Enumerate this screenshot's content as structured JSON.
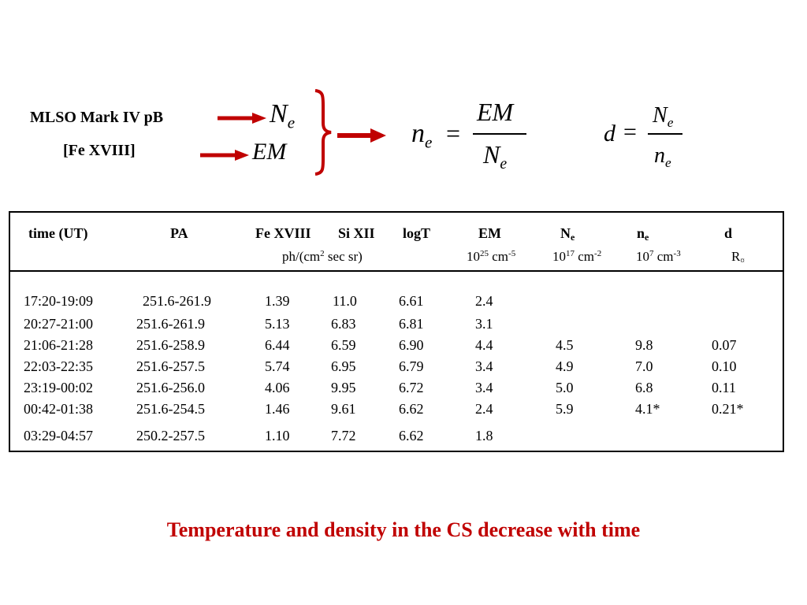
{
  "colors": {
    "accent": "#c00000",
    "text": "#000000",
    "background": "#ffffff"
  },
  "inputs": {
    "source1": "MLSO Mark IV pB",
    "source2": "[Fe XVIII]"
  },
  "symbols": {
    "Ne_main": "N",
    "Ne_sub": "e",
    "EM": "EM"
  },
  "equations": {
    "density": {
      "lhs_main": "n",
      "lhs_sub": "e",
      "equals": "=",
      "numerator": "EM",
      "denominator_main": "N",
      "denominator_sub": "e"
    },
    "depth": {
      "lhs": "d",
      "equals": "=",
      "numerator_main": "N",
      "numerator_sub": "e",
      "denominator_main": "n",
      "denominator_sub": "e"
    }
  },
  "table": {
    "headers": {
      "time": "time (UT)",
      "pa": "PA",
      "fe": "Fe XVIII",
      "si": "Si XII",
      "logt": "logT",
      "em": "EM",
      "ne_main": "N",
      "ne_sub": "e",
      "n_main": "n",
      "n_sub": "e",
      "d": "d"
    },
    "units": {
      "intensity_pre": "ph/(cm",
      "intensity_sup": "2",
      "intensity_post": " sec sr)",
      "em_base": "10",
      "em_exp": "25",
      "em_unit": " cm",
      "em_unit_exp": "-5",
      "ne_base": "10",
      "ne_exp": "17",
      "ne_unit": " cm",
      "ne_unit_exp": "-2",
      "n_base": "10",
      "n_exp": "7",
      "n_unit": " cm",
      "n_unit_exp": "-3",
      "d_main": "R",
      "d_sub": "¤"
    },
    "rows": [
      [
        "17:20-19:09",
        "251.6-261.9",
        "1.39",
        "11.0",
        "6.61",
        "2.4",
        "",
        "",
        ""
      ],
      [
        "20:27-21:00",
        "251.6-261.9",
        "5.13",
        "6.83",
        "6.81",
        "3.1",
        "",
        "",
        ""
      ],
      [
        "21:06-21:28",
        "251.6-258.9",
        "6.44",
        "6.59",
        "6.90",
        "4.4",
        "4.5",
        "9.8",
        "0.07"
      ],
      [
        "22:03-22:35",
        "251.6-257.5",
        "5.74",
        "6.95",
        "6.79",
        "3.4",
        "4.9",
        "7.0",
        "0.10"
      ],
      [
        "23:19-00:02",
        "251.6-256.0",
        "4.06",
        "9.95",
        "6.72",
        "3.4",
        "5.0",
        "6.8",
        "0.11"
      ],
      [
        "00:42-01:38",
        "251.6-254.5",
        "1.46",
        "9.61",
        "6.62",
        "2.4",
        "5.9",
        "4.1*",
        "0.21*"
      ],
      [
        "03:29-04:57",
        "250.2-257.5",
        "1.10",
        "7.72",
        "6.62",
        "1.8",
        "",
        "",
        ""
      ]
    ]
  },
  "conclusion": "Temperature and density in the CS decrease with time"
}
